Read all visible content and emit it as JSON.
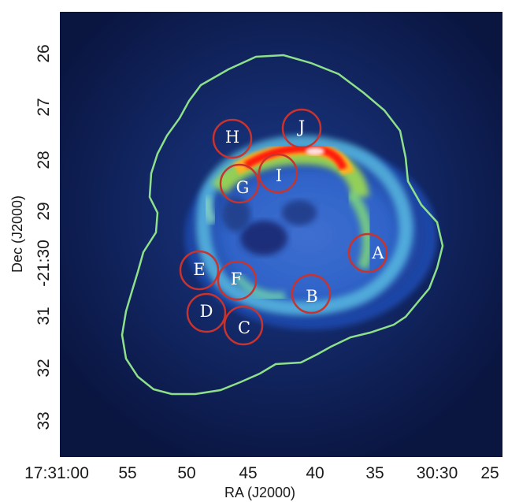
{
  "axes": {
    "xlabel": "RA (J2000)",
    "ylabel": "Dec (J2000)",
    "x_ticks": [
      "17:31:00",
      "55",
      "50",
      "45",
      "40",
      "35",
      "30:30",
      "25"
    ],
    "y_ticks": [
      "26",
      "27",
      "28",
      "29",
      "-21:30",
      "31",
      "32",
      "33"
    ]
  },
  "regions": [
    "A",
    "B",
    "C",
    "D",
    "E",
    "F",
    "G",
    "H",
    "I",
    "J"
  ],
  "colors": {
    "background": "#0a1540",
    "contour": "#8ee08a",
    "region_circle": "#c8332e",
    "emission_low": "#2f6fd6",
    "emission_mid": "#5fd6e6",
    "emission_high": "#b8e04a",
    "emission_peak": "#ff2010"
  }
}
